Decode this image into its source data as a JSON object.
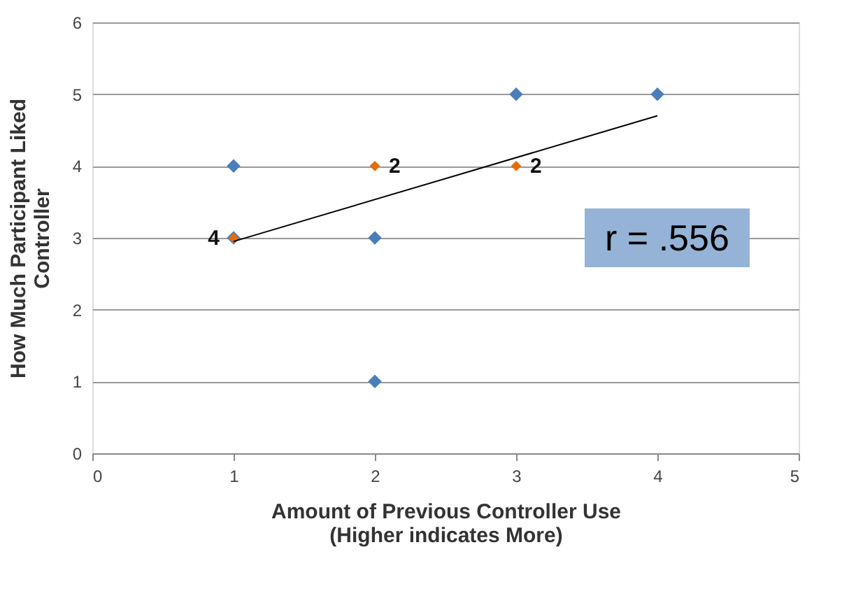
{
  "chart_data": {
    "type": "scatter",
    "xlabel": "Amount of Previous Controller Use\n(Higher indicates More)",
    "ylabel": "How Much Participant Liked\nController",
    "series": [
      {
        "color": "#4a7ebb",
        "x": [
          1,
          1,
          2,
          2,
          3,
          4
        ],
        "values": [
          4,
          3,
          3,
          1,
          5,
          5
        ],
        "marker": "diamond"
      },
      {
        "color": "#e46c0a",
        "x": [
          1,
          2,
          3
        ],
        "values": [
          3,
          4,
          4
        ],
        "marker": "diamond"
      },
      {
        "type": "line",
        "color": "#000000",
        "x": [
          1,
          4
        ],
        "values": [
          2.95,
          4.7
        ],
        "marker": "none"
      }
    ],
    "annotations": [
      {
        "text": "4",
        "x": 1,
        "y": 3
      },
      {
        "text": "2",
        "x": 2,
        "y": 4
      },
      {
        "text": "2",
        "x": 3,
        "y": 4
      },
      "r = .556"
    ],
    "xlim": [
      0,
      5
    ],
    "xticks": [
      0,
      1,
      2,
      3,
      4,
      5
    ],
    "ylim": [
      0,
      6
    ],
    "yticks": [
      0,
      1,
      2,
      3,
      4,
      5,
      6
    ],
    "grid": "y"
  }
}
